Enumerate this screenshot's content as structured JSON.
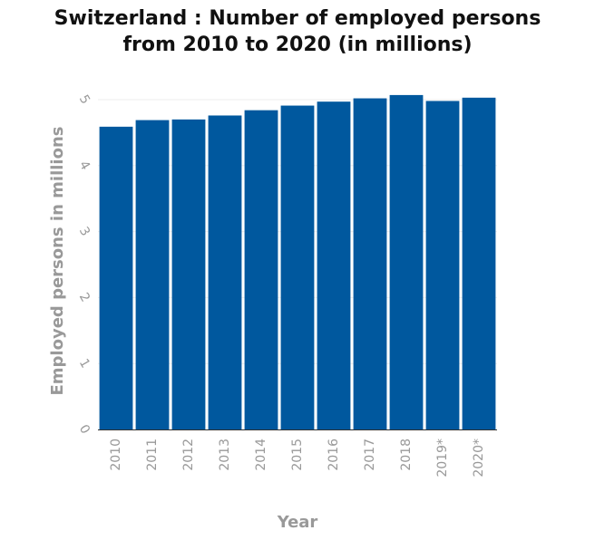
{
  "chart_data": {
    "type": "bar",
    "title_line1": "Switzerland : Number of employed persons",
    "title_line2": "from 2010 to 2020 (in millions)",
    "xlabel": "Year",
    "ylabel": "Employed persons in millions",
    "categories": [
      "2010",
      "2011",
      "2012",
      "2013",
      "2014",
      "2015",
      "2016",
      "2017",
      "2018",
      "2019*",
      "2020*"
    ],
    "values": [
      4.59,
      4.69,
      4.7,
      4.76,
      4.84,
      4.91,
      4.97,
      5.02,
      5.07,
      4.98,
      5.03
    ],
    "ylim": [
      0,
      5
    ],
    "yticks": [
      "0",
      "1",
      "2",
      "3",
      "4",
      "5"
    ],
    "grid": true,
    "bar_color": "#00589e"
  }
}
